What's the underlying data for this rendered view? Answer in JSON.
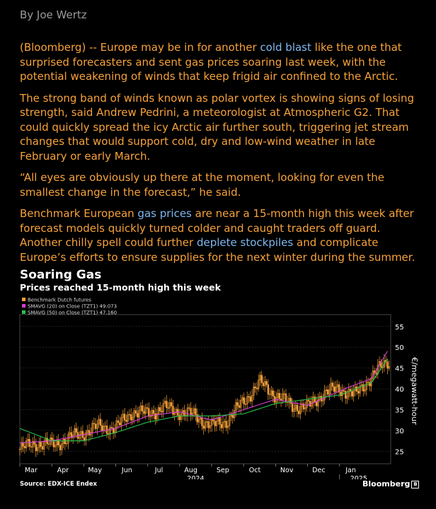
{
  "byline": "By Joe Wertz",
  "article": {
    "p1_pre": "(Bloomberg) -- Europe may be in for another ",
    "p1_link": "cold blast",
    "p1_post": " like the one that surprised forecasters and sent gas prices soaring last week, with the potential weakening of winds that keep frigid air confined to the Arctic.",
    "p2": "The strong band of winds known as polar vortex is showing signs of losing strength, said Andrew Pedrini, a meteorologist at Atmospheric G2. That could quickly spread the icy Arctic air further south, triggering jet stream changes that would support cold, dry and low-wind weather in late February or early March.",
    "p3": "“All eyes are obviously up there at the moment, looking for even the smallest change in the forecast,” he said.",
    "p4_pre": "Benchmark European ",
    "p4_link1": "gas prices",
    "p4_mid": " are near a 15-month high this week after forecast models quickly turned colder and caught traders off guard. Another chilly spell could further ",
    "p4_link2": "deplete stockpiles",
    "p4_post": " and complicate Europe’s efforts to ensure supplies for the next winter during the summer."
  },
  "chart": {
    "title": "Soaring Gas",
    "subtitle": "Prices reached 15-month high this week",
    "legend": [
      {
        "label": "Benchmark Dutch futures",
        "color": "#f7a23a"
      },
      {
        "label": "SMAVG (20)  on Close (TZT1) 49.073",
        "color": "#d63bd6"
      },
      {
        "label": "SMAVG (50)  on Close (TZT1) 47.160",
        "color": "#27c24c"
      }
    ],
    "source": "Source: EDX-ICE Endex",
    "brand": "Bloomberg",
    "brand_mark": "B"
  },
  "chart_data": {
    "type": "line",
    "title": "Soaring Gas",
    "subtitle": "Prices reached 15-month high this week",
    "xlabel": "2024 / 2025",
    "ylabel": "€/megawatt-hour",
    "ylim": [
      22,
      57
    ],
    "yticks": [
      25,
      30,
      35,
      40,
      45,
      50,
      55
    ],
    "ytick_labels": [
      "25",
      "30",
      "35",
      "40",
      "45",
      "50",
      "55"
    ],
    "x_month_labels": [
      "Mar",
      "Apr",
      "May",
      "Jun",
      "Jul",
      "Aug",
      "Sep",
      "Oct",
      "Nov",
      "Dec",
      "Jan"
    ],
    "year_labels": [
      "2024",
      "2025"
    ],
    "grid": true,
    "series": [
      {
        "name": "Benchmark Dutch futures",
        "color": "#f7a23a",
        "style": "candlestick",
        "x": [
          0,
          0.5,
          1,
          1.5,
          2,
          2.5,
          3,
          3.5,
          4,
          4.5,
          5,
          5.5,
          6,
          6.5,
          7,
          7.5,
          8,
          8.5,
          9,
          9.5,
          10,
          10.5,
          11,
          11.5
        ],
        "values": [
          25.5,
          27.0,
          26.5,
          28.0,
          29.5,
          31.0,
          30.5,
          34.5,
          34.0,
          35.5,
          34.5,
          33.5,
          31.0,
          32.5,
          37.0,
          41.5,
          38.5,
          36.0,
          35.5,
          39.0,
          40.0,
          38.5,
          43.0,
          46.5
        ]
      },
      {
        "name": "SMAVG (20) on Close (TZT1)",
        "color": "#d63bd6",
        "x": [
          0,
          1,
          2,
          3,
          4,
          5,
          6,
          7,
          8,
          9,
          10,
          11,
          11.5
        ],
        "values": [
          27.0,
          27.5,
          29.0,
          30.5,
          33.5,
          34.5,
          32.5,
          35.0,
          37.5,
          36.0,
          39.5,
          42.5,
          49.073
        ]
      },
      {
        "name": "SMAVG (50) on Close (TZT1)",
        "color": "#27c24c",
        "x": [
          0,
          1,
          2,
          3,
          4,
          5,
          6,
          7,
          8,
          9,
          10,
          11,
          11.5
        ],
        "values": [
          30.5,
          27.5,
          27.5,
          29.5,
          32.0,
          33.5,
          33.5,
          34.0,
          36.5,
          37.5,
          38.5,
          41.5,
          47.16
        ]
      }
    ]
  }
}
